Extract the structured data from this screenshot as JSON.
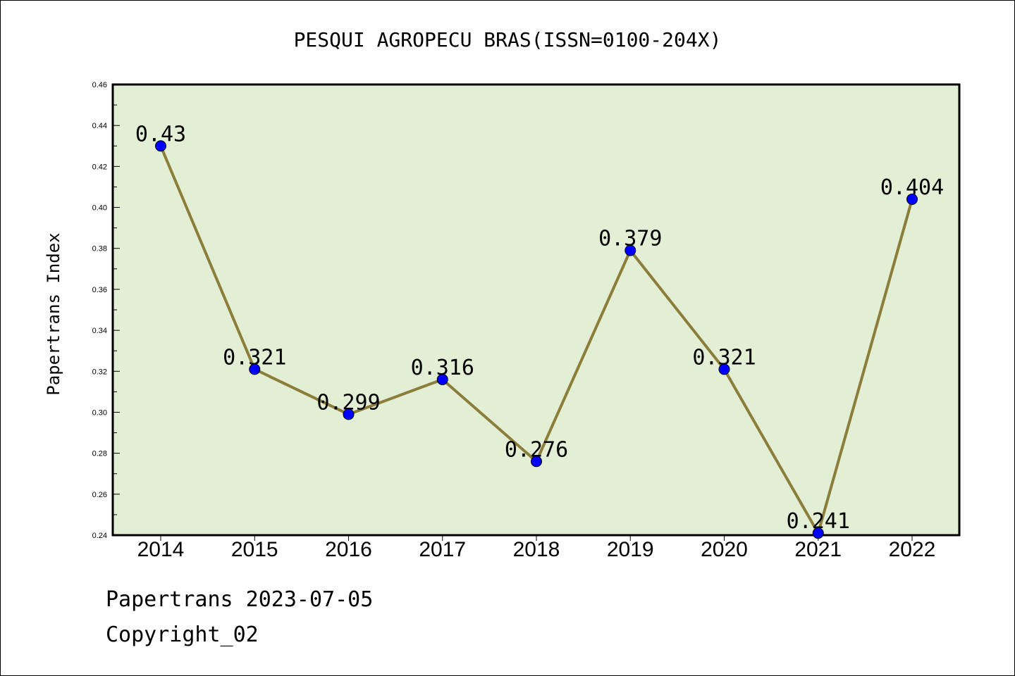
{
  "chart_data": {
    "type": "line",
    "title": "PESQUI AGROPECU BRAS(ISSN=0100-204X)",
    "ylabel": "Papertrans Index",
    "xlabel": "",
    "categories": [
      "2014",
      "2015",
      "2016",
      "2017",
      "2018",
      "2019",
      "2020",
      "2021",
      "2022"
    ],
    "series": [
      {
        "values": [
          0.43,
          0.321,
          0.299,
          0.316,
          0.276,
          0.379,
          0.321,
          0.241,
          0.404
        ],
        "labels": [
          "0.43",
          "0.321",
          "0.299",
          "0.316",
          "0.276",
          "0.379",
          "0.321",
          "0.241",
          "0.404"
        ]
      }
    ],
    "ylim": [
      0.24,
      0.46
    ],
    "yticks": [
      "0.24",
      "0.26",
      "0.28",
      "0.30",
      "0.32",
      "0.34",
      "0.36",
      "0.38",
      "0.40",
      "0.42",
      "0.44",
      "0.46"
    ],
    "grid": false,
    "legend": "none",
    "colors": {
      "line": "#8B7D3A",
      "marker": "#0000FF",
      "plot_bg": "#E2EFD4"
    }
  },
  "footer": {
    "line1": "Papertrans 2023-07-05",
    "line2": "Copyright_02"
  }
}
